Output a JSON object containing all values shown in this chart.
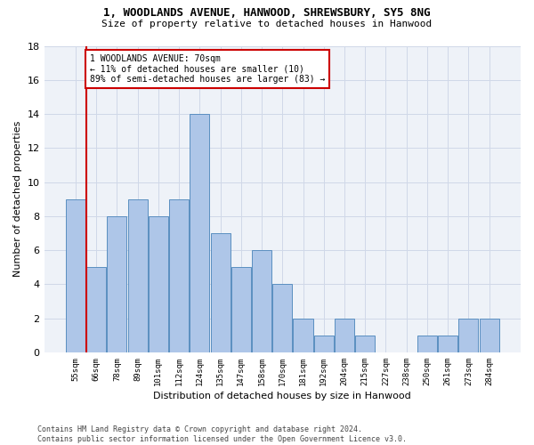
{
  "title1": "1, WOODLANDS AVENUE, HANWOOD, SHREWSBURY, SY5 8NG",
  "title2": "Size of property relative to detached houses in Hanwood",
  "xlabel": "Distribution of detached houses by size in Hanwood",
  "ylabel": "Number of detached properties",
  "footnote": "Contains HM Land Registry data © Crown copyright and database right 2024.\nContains public sector information licensed under the Open Government Licence v3.0.",
  "bin_labels": [
    "55sqm",
    "66sqm",
    "78sqm",
    "89sqm",
    "101sqm",
    "112sqm",
    "124sqm",
    "135sqm",
    "147sqm",
    "158sqm",
    "170sqm",
    "181sqm",
    "192sqm",
    "204sqm",
    "215sqm",
    "227sqm",
    "238sqm",
    "250sqm",
    "261sqm",
    "273sqm",
    "284sqm"
  ],
  "bar_heights": [
    9,
    5,
    8,
    9,
    8,
    9,
    14,
    7,
    5,
    6,
    4,
    2,
    1,
    2,
    1,
    0,
    0,
    1,
    1,
    2,
    2
  ],
  "bar_color": "#aec6e8",
  "bar_edge_color": "#5a8fc0",
  "vline_color": "#cc0000",
  "annotation_text": "1 WOODLANDS AVENUE: 70sqm\n← 11% of detached houses are smaller (10)\n89% of semi-detached houses are larger (83) →",
  "annotation_box_color": "#cc0000",
  "ylim": [
    0,
    18
  ],
  "yticks": [
    0,
    2,
    4,
    6,
    8,
    10,
    12,
    14,
    16,
    18
  ],
  "grid_color": "#d0d8e8",
  "bg_color": "#eef2f8"
}
